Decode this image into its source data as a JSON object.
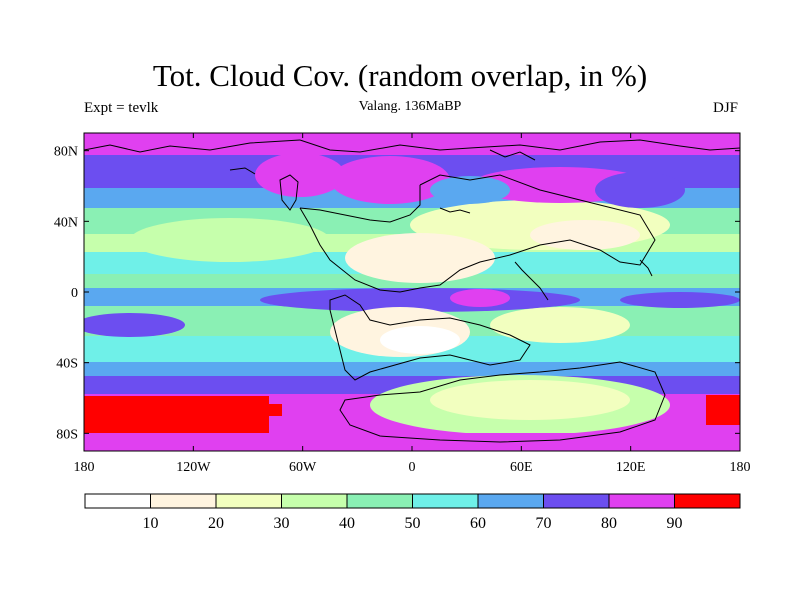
{
  "map": {
    "title": "Tot. Cloud Cov. (random overlap, in %)",
    "subtitle": "Valang. 136MaBP",
    "left_label": "Expt = tevlk",
    "right_label": "DJF",
    "lat_ticks": [
      "80N",
      "40N",
      "0",
      "40S",
      "80S"
    ],
    "lat_values": [
      80,
      40,
      0,
      -40,
      -80
    ],
    "lon_ticks": [
      "180",
      "120W",
      "60W",
      "0",
      "60E",
      "120E",
      "180"
    ],
    "lon_values": [
      -180,
      -120,
      -60,
      0,
      60,
      120,
      180
    ],
    "lat_range": [
      -90,
      90
    ],
    "lon_range": [
      -180,
      180
    ],
    "colorbar": {
      "labels": [
        "10",
        "20",
        "30",
        "40",
        "50",
        "60",
        "70",
        "80",
        "90"
      ],
      "colors": [
        "#ffffff",
        "#fff4e0",
        "#f2ffbf",
        "#c6ffac",
        "#8af0b4",
        "#6ff0e8",
        "#5aa8f0",
        "#6c4ef0",
        "#e040f0",
        "#ff0000"
      ]
    }
  }
}
